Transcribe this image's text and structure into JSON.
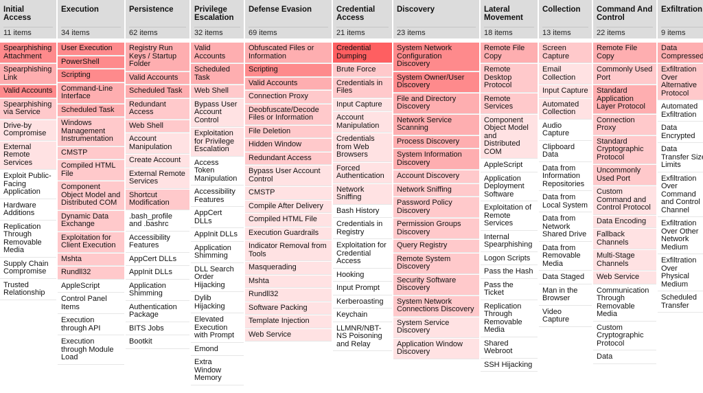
{
  "heat_colors": {
    "5": "#fe5f61",
    "4": "#fe8a8c",
    "3": "#feaeb0",
    "2": "#ffc9cb",
    "1": "#ffe2e3",
    "0": "#ffffff"
  },
  "tactics": [
    {
      "name": "Initial Access",
      "count": "11 items",
      "w": 82,
      "techniques": [
        {
          "t": "Spearphishing Attachment",
          "h": 4
        },
        {
          "t": "Spearphishing Link",
          "h": 3
        },
        {
          "t": "Valid Accounts",
          "h": 4
        },
        {
          "t": "Spearphishing via Service",
          "h": 2
        },
        {
          "t": "Drive-by Compromise",
          "h": 1
        },
        {
          "t": "External Remote Services",
          "h": 1
        },
        {
          "t": "Exploit Public-Facing Application",
          "h": 0
        },
        {
          "t": "Hardware Additions",
          "h": 0
        },
        {
          "t": "Replication Through Removable Media",
          "h": 0
        },
        {
          "t": "Supply Chain Compromise",
          "h": 0
        },
        {
          "t": "Trusted Relationship",
          "h": 0
        }
      ]
    },
    {
      "name": "Execution",
      "count": "34 items",
      "w": 97,
      "techniques": [
        {
          "t": "User Execution",
          "h": 4
        },
        {
          "t": "PowerShell",
          "h": 4
        },
        {
          "t": "Scripting",
          "h": 4
        },
        {
          "t": "Command-Line Interface",
          "h": 3
        },
        {
          "t": "Scheduled Task",
          "h": 3
        },
        {
          "t": "Windows Management Instrumentation",
          "h": 2
        },
        {
          "t": "CMSTP",
          "h": 2
        },
        {
          "t": "Compiled HTML File",
          "h": 2
        },
        {
          "t": "Component Object Model and Distributed COM",
          "h": 2
        },
        {
          "t": "Dynamic Data Exchange",
          "h": 2
        },
        {
          "t": "Exploitation for Client Execution",
          "h": 2
        },
        {
          "t": "Mshta",
          "h": 2
        },
        {
          "t": "Rundll32",
          "h": 2
        },
        {
          "t": "AppleScript",
          "h": 0
        },
        {
          "t": "Control Panel Items",
          "h": 0
        },
        {
          "t": "Execution through API",
          "h": 0
        },
        {
          "t": "Execution through Module Load",
          "h": 0
        }
      ]
    },
    {
      "name": "Persistence",
      "count": "62 items",
      "w": 93,
      "techniques": [
        {
          "t": "Registry Run Keys / Startup Folder",
          "h": 3
        },
        {
          "t": "Valid Accounts",
          "h": 3
        },
        {
          "t": "Scheduled Task",
          "h": 3
        },
        {
          "t": "Redundant Access",
          "h": 2
        },
        {
          "t": "Web Shell",
          "h": 2
        },
        {
          "t": "Account Manipulation",
          "h": 1
        },
        {
          "t": "Create Account",
          "h": 1
        },
        {
          "t": "External Remote Services",
          "h": 1
        },
        {
          "t": "Shortcut Modification",
          "h": 2
        },
        {
          "t": ".bash_profile and .bashrc",
          "h": 0
        },
        {
          "t": "Accessibility Features",
          "h": 0
        },
        {
          "t": "AppCert DLLs",
          "h": 0
        },
        {
          "t": "AppInit DLLs",
          "h": 0
        },
        {
          "t": "Application Shimming",
          "h": 0
        },
        {
          "t": "Authentication Package",
          "h": 0
        },
        {
          "t": "BITS Jobs",
          "h": 0
        },
        {
          "t": "Bootkit",
          "h": 0
        }
      ]
    },
    {
      "name": "Privilege Escalation",
      "count": "32 items",
      "w": 77,
      "techniques": [
        {
          "t": "Valid Accounts",
          "h": 3
        },
        {
          "t": "Scheduled Task",
          "h": 3
        },
        {
          "t": "Web Shell",
          "h": 2
        },
        {
          "t": "Bypass User Account Control",
          "h": 1
        },
        {
          "t": "Exploitation for Privilege Escalation",
          "h": 1
        },
        {
          "t": "Access Token Manipulation",
          "h": 0
        },
        {
          "t": "Accessibility Features",
          "h": 0
        },
        {
          "t": "AppCert DLLs",
          "h": 0
        },
        {
          "t": "AppInit DLLs",
          "h": 0
        },
        {
          "t": "Application Shimming",
          "h": 0
        },
        {
          "t": "DLL Search Order Hijacking",
          "h": 0
        },
        {
          "t": "Dylib Hijacking",
          "h": 0
        },
        {
          "t": "Elevated Execution with Prompt",
          "h": 0
        },
        {
          "t": "Emond",
          "h": 0
        },
        {
          "t": "Extra Window Memory",
          "h": 0
        }
      ]
    },
    {
      "name": "Defense Evasion",
      "count": "69 items",
      "w": 126,
      "techniques": [
        {
          "t": "Obfuscated Files or Information",
          "h": 3
        },
        {
          "t": "Scripting",
          "h": 4
        },
        {
          "t": "Valid Accounts",
          "h": 3
        },
        {
          "t": "Connection Proxy",
          "h": 2
        },
        {
          "t": "Deobfuscate/Decode Files or Information",
          "h": 2
        },
        {
          "t": "File Deletion",
          "h": 2
        },
        {
          "t": "Hidden Window",
          "h": 2
        },
        {
          "t": "Redundant Access",
          "h": 2
        },
        {
          "t": "Bypass User Account Control",
          "h": 1
        },
        {
          "t": "CMSTP",
          "h": 1
        },
        {
          "t": "Compile After Delivery",
          "h": 1
        },
        {
          "t": "Compiled HTML File",
          "h": 1
        },
        {
          "t": "Execution Guardrails",
          "h": 1
        },
        {
          "t": "Indicator Removal from Tools",
          "h": 1
        },
        {
          "t": "Masquerading",
          "h": 1
        },
        {
          "t": "Mshta",
          "h": 1
        },
        {
          "t": "Rundll32",
          "h": 1
        },
        {
          "t": "Software Packing",
          "h": 1
        },
        {
          "t": "Template Injection",
          "h": 1
        },
        {
          "t": "Web Service",
          "h": 1
        }
      ]
    },
    {
      "name": "Credential Access",
      "count": "21 items",
      "w": 86,
      "techniques": [
        {
          "t": "Credential Dumping",
          "h": 5
        },
        {
          "t": "Brute Force",
          "h": 2
        },
        {
          "t": "Credentials in Files",
          "h": 2
        },
        {
          "t": "Input Capture",
          "h": 1
        },
        {
          "t": "Account Manipulation",
          "h": 1
        },
        {
          "t": "Credentials from Web Browsers",
          "h": 1
        },
        {
          "t": "Forced Authentication",
          "h": 1
        },
        {
          "t": "Network Sniffing",
          "h": 1
        },
        {
          "t": "Bash History",
          "h": 0
        },
        {
          "t": "Credentials in Registry",
          "h": 0
        },
        {
          "t": "Exploitation for Credential Access",
          "h": 0
        },
        {
          "t": "Hooking",
          "h": 0
        },
        {
          "t": "Input Prompt",
          "h": 0
        },
        {
          "t": "Kerberoasting",
          "h": 0
        },
        {
          "t": "Keychain",
          "h": 0
        },
        {
          "t": "LLMNR/NBT-NS Poisoning and Relay",
          "h": 0
        }
      ]
    },
    {
      "name": "Discovery",
      "count": "23 items",
      "w": 125,
      "techniques": [
        {
          "t": "System Network Configuration Discovery",
          "h": 4
        },
        {
          "t": "System Owner/User Discovery",
          "h": 4
        },
        {
          "t": "File and Directory Discovery",
          "h": 3
        },
        {
          "t": "Network Service Scanning",
          "h": 3
        },
        {
          "t": "Process Discovery",
          "h": 3
        },
        {
          "t": "System Information Discovery",
          "h": 3
        },
        {
          "t": "Account Discovery",
          "h": 2
        },
        {
          "t": "Network Sniffing",
          "h": 2
        },
        {
          "t": "Password Policy Discovery",
          "h": 2
        },
        {
          "t": "Permission Groups Discovery",
          "h": 2
        },
        {
          "t": "Query Registry",
          "h": 2
        },
        {
          "t": "Remote System Discovery",
          "h": 2
        },
        {
          "t": "Security Software Discovery",
          "h": 2
        },
        {
          "t": "System Network Connections Discovery",
          "h": 2
        },
        {
          "t": "System Service Discovery",
          "h": 1
        },
        {
          "t": "Application Window Discovery",
          "h": 1
        }
      ]
    },
    {
      "name": "Lateral Movement",
      "count": "18 items",
      "w": 83,
      "techniques": [
        {
          "t": "Remote File Copy",
          "h": 3
        },
        {
          "t": "Remote Desktop Protocol",
          "h": 2
        },
        {
          "t": "Remote Services",
          "h": 2
        },
        {
          "t": "Component Object Model and Distributed COM",
          "h": 1
        },
        {
          "t": "AppleScript",
          "h": 0
        },
        {
          "t": "Application Deployment Software",
          "h": 0
        },
        {
          "t": "Exploitation of Remote Services",
          "h": 0
        },
        {
          "t": "Internal Spearphishing",
          "h": 0
        },
        {
          "t": "Logon Scripts",
          "h": 0
        },
        {
          "t": "Pass the Hash",
          "h": 0
        },
        {
          "t": "Pass the Ticket",
          "h": 0
        },
        {
          "t": "Replication Through Removable Media",
          "h": 0
        },
        {
          "t": "Shared Webroot",
          "h": 0
        },
        {
          "t": "SSH Hijacking",
          "h": 0
        }
      ]
    },
    {
      "name": "Collection",
      "count": "13 items",
      "w": 77,
      "techniques": [
        {
          "t": "Screen Capture",
          "h": 2
        },
        {
          "t": "Email Collection",
          "h": 1
        },
        {
          "t": "Input Capture",
          "h": 1
        },
        {
          "t": "Automated Collection",
          "h": 1
        },
        {
          "t": "Audio Capture",
          "h": 0
        },
        {
          "t": "Clipboard Data",
          "h": 0
        },
        {
          "t": "Data from Information Repositories",
          "h": 0
        },
        {
          "t": "Data from Local System",
          "h": 0
        },
        {
          "t": "Data from Network Shared Drive",
          "h": 0
        },
        {
          "t": "Data from Removable Media",
          "h": 0
        },
        {
          "t": "Data Staged",
          "h": 0
        },
        {
          "t": "Man in the Browser",
          "h": 0
        },
        {
          "t": "Video Capture",
          "h": 0
        }
      ]
    },
    {
      "name": "Command And Control",
      "count": "22 items",
      "w": 92,
      "techniques": [
        {
          "t": "Remote File Copy",
          "h": 3
        },
        {
          "t": "Commonly Used Port",
          "h": 2
        },
        {
          "t": "Standard Application Layer Protocol",
          "h": 3
        },
        {
          "t": "Connection Proxy",
          "h": 2
        },
        {
          "t": "Standard Cryptographic Protocol",
          "h": 2
        },
        {
          "t": "Uncommonly Used Port",
          "h": 2
        },
        {
          "t": "Custom Command and Control Protocol",
          "h": 1
        },
        {
          "t": "Data Encoding",
          "h": 1
        },
        {
          "t": "Fallback Channels",
          "h": 1
        },
        {
          "t": "Multi-Stage Channels",
          "h": 1
        },
        {
          "t": "Web Service",
          "h": 1
        },
        {
          "t": "Communication Through Removable Media",
          "h": 0
        },
        {
          "t": "Custom Cryptographic Protocol",
          "h": 0
        },
        {
          "t": "Data",
          "h": 0
        }
      ]
    },
    {
      "name": "Exfiltration",
      "count": "9 items",
      "w": 76,
      "techniques": [
        {
          "t": "Data Compressed",
          "h": 3
        },
        {
          "t": "Exfiltration Over Alternative Protocol",
          "h": 2
        },
        {
          "t": "Automated Exfiltration",
          "h": 0
        },
        {
          "t": "Data Encrypted",
          "h": 0
        },
        {
          "t": "Data Transfer Size Limits",
          "h": 0
        },
        {
          "t": "Exfiltration Over Command and Control Channel",
          "h": 0
        },
        {
          "t": "Exfiltration Over Other Network Medium",
          "h": 0
        },
        {
          "t": "Exfiltration Over Physical Medium",
          "h": 0
        },
        {
          "t": "Scheduled Transfer",
          "h": 0
        }
      ]
    }
  ]
}
